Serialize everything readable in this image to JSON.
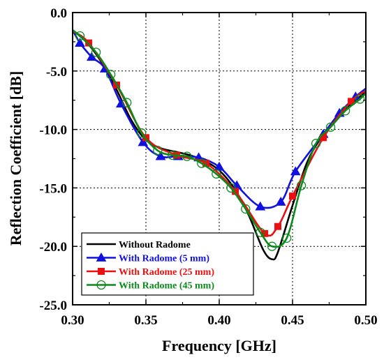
{
  "chart_data": {
    "type": "line",
    "title": "",
    "xlabel": "Frequency [GHz]",
    "ylabel": "Reflection Coefficient [dB]",
    "xlim": [
      0.3,
      0.5
    ],
    "ylim": [
      -25.0,
      0.0
    ],
    "x_ticks": [
      0.3,
      0.35,
      0.4,
      0.45,
      0.5
    ],
    "y_ticks": [
      0.0,
      -5.0,
      -10.0,
      -15.0,
      -20.0,
      -25.0
    ],
    "x_tick_labels": [
      "0.30",
      "0.35",
      "0.40",
      "0.45",
      "0.50"
    ],
    "y_tick_labels": [
      "0.0",
      "-5.0",
      "-10.0",
      "-15.0",
      "-20.0",
      "-25.0"
    ],
    "grid": "dotted",
    "legend_position": "bottom-left",
    "series": [
      {
        "name": "Without Radome",
        "color": "#000000",
        "marker": "none",
        "x": [
          0.3,
          0.31,
          0.32,
          0.33,
          0.34,
          0.35,
          0.36,
          0.37,
          0.38,
          0.39,
          0.4,
          0.41,
          0.42,
          0.43,
          0.436,
          0.44,
          0.45,
          0.46,
          0.47,
          0.48,
          0.49,
          0.5
        ],
        "y": [
          -1.5,
          -2.6,
          -4.3,
          -6.6,
          -9.2,
          -10.9,
          -11.6,
          -11.9,
          -12.2,
          -12.7,
          -13.5,
          -15.0,
          -17.3,
          -20.3,
          -21.1,
          -20.5,
          -16.5,
          -12.8,
          -10.6,
          -9.0,
          -7.8,
          -6.8
        ]
      },
      {
        "name": "With Radome (5 mm)",
        "color": "#1010e0",
        "marker": "triangle",
        "x": [
          0.3,
          0.305,
          0.313,
          0.322,
          0.333,
          0.348,
          0.36,
          0.372,
          0.386,
          0.4,
          0.412,
          0.428,
          0.442,
          0.452,
          0.471,
          0.482,
          0.493,
          0.5
        ],
        "y": [
          -1.5,
          -2.6,
          -3.8,
          -4.8,
          -7.8,
          -11.1,
          -12.3,
          -12.3,
          -12.4,
          -13.2,
          -14.8,
          -16.6,
          -16.2,
          -13.6,
          -10.4,
          -8.6,
          -7.2,
          -6.5
        ]
      },
      {
        "name": "With Radome (25 mm)",
        "color": "#e81010",
        "marker": "square",
        "x": [
          0.3,
          0.311,
          0.33,
          0.35,
          0.371,
          0.391,
          0.411,
          0.431,
          0.44,
          0.45,
          0.471,
          0.49,
          0.5
        ],
        "y": [
          -1.6,
          -2.6,
          -6.2,
          -10.7,
          -12.2,
          -12.9,
          -15.3,
          -18.9,
          -18.3,
          -15.7,
          -10.7,
          -7.6,
          -6.7
        ]
      },
      {
        "name": "With Radome (45 mm)",
        "color": "#0a8a1a",
        "marker": "open-circle",
        "x": [
          0.3,
          0.305,
          0.316,
          0.326,
          0.337,
          0.347,
          0.358,
          0.368,
          0.378,
          0.388,
          0.398,
          0.408,
          0.418,
          0.428,
          0.436,
          0.446,
          0.456,
          0.466,
          0.476,
          0.486,
          0.496,
          0.5
        ],
        "y": [
          -1.5,
          -2.0,
          -3.4,
          -5.3,
          -7.7,
          -10.3,
          -11.8,
          -12.2,
          -12.3,
          -12.9,
          -13.8,
          -15.0,
          -16.8,
          -18.8,
          -20.0,
          -19.3,
          -14.8,
          -11.2,
          -9.8,
          -8.4,
          -7.4,
          -6.9
        ]
      }
    ]
  }
}
